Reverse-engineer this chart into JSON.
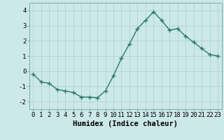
{
  "x": [
    0,
    1,
    2,
    3,
    4,
    5,
    6,
    7,
    8,
    9,
    10,
    11,
    12,
    13,
    14,
    15,
    16,
    17,
    18,
    19,
    20,
    21,
    22,
    23
  ],
  "y": [
    -0.2,
    -0.7,
    -0.8,
    -1.2,
    -1.3,
    -1.4,
    -1.7,
    -1.7,
    -1.75,
    -1.3,
    -0.3,
    0.85,
    1.8,
    2.8,
    3.35,
    3.9,
    3.35,
    2.7,
    2.8,
    2.3,
    1.9,
    1.5,
    1.1,
    1.0
  ],
  "xlabel": "Humidex (Indice chaleur)",
  "ylim": [
    -2.5,
    4.5
  ],
  "xlim": [
    -0.5,
    23.5
  ],
  "yticks": [
    -2,
    -1,
    0,
    1,
    2,
    3,
    4
  ],
  "xticks": [
    0,
    1,
    2,
    3,
    4,
    5,
    6,
    7,
    8,
    9,
    10,
    11,
    12,
    13,
    14,
    15,
    16,
    17,
    18,
    19,
    20,
    21,
    22,
    23
  ],
  "line_color": "#2a7a6a",
  "marker": "+",
  "marker_size": 4,
  "bg_color": "#cce8e8",
  "grid_color": "#b8d4d4",
  "xlabel_fontsize": 7.5,
  "tick_fontsize": 6.5,
  "line_width": 1.0
}
